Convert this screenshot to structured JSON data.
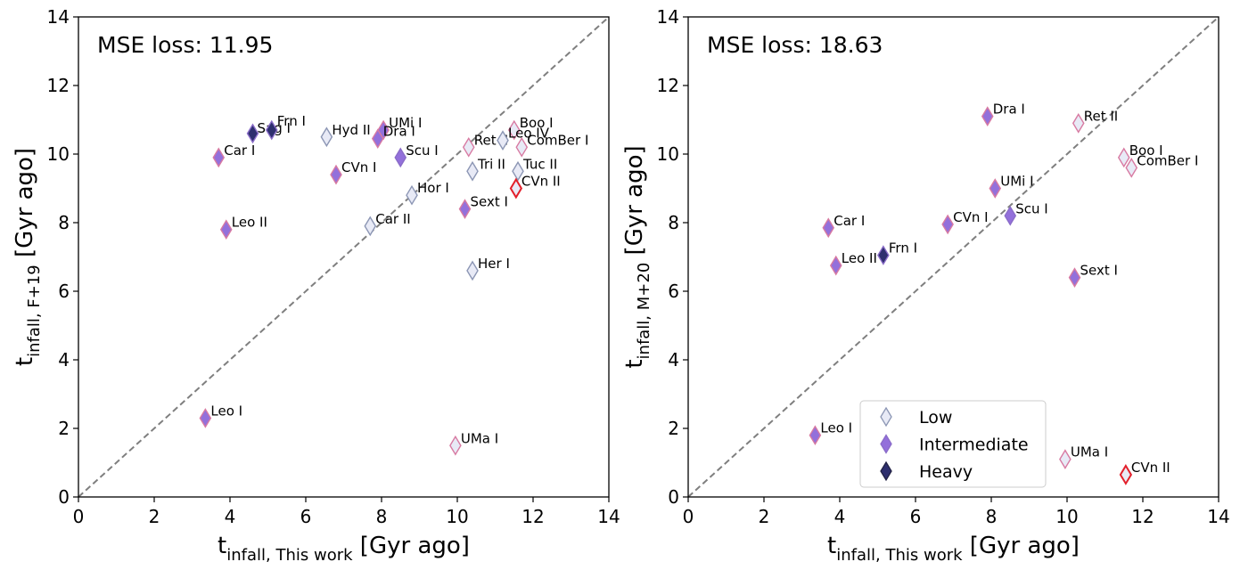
{
  "colors": {
    "low_fill": "#e8eaf6",
    "low_edge": "#8c96b4",
    "intermediate_fill": "#9370db",
    "heavy_fill": "#2e2f6e",
    "edge_pink": "#d87aa2",
    "edge_purple": "#8a6cc8",
    "edge_red": "#e3202b",
    "diagonal": "#7f7f7f"
  },
  "chart_data": [
    {
      "type": "scatter",
      "panel": "left",
      "mse_label": "MSE loss: 11.95",
      "xlabel": {
        "base": "t",
        "sub": "infall, This work",
        "unit": "[Gyr ago]"
      },
      "ylabel": {
        "base": "t",
        "sub": "infall, F+19",
        "unit": "[Gyr ago]"
      },
      "xlim": [
        0,
        14
      ],
      "ylim": [
        0,
        14
      ],
      "xticks": [
        "0",
        "2",
        "4",
        "6",
        "8",
        "10",
        "12",
        "14"
      ],
      "yticks": [
        "0",
        "2",
        "4",
        "6",
        "8",
        "10",
        "12",
        "14"
      ],
      "diagonal": true,
      "points": [
        {
          "name": "Sag I",
          "x": 4.6,
          "y": 10.6,
          "cls": "heavy",
          "edge": "purple",
          "dx": 5,
          "dy": -1
        },
        {
          "name": "Frn I",
          "x": 5.1,
          "y": 10.7,
          "cls": "heavy",
          "edge": "purple",
          "dx": 6,
          "dy": -5
        },
        {
          "name": "Car I",
          "x": 3.7,
          "y": 9.9,
          "cls": "intermediate",
          "edge": "pink",
          "dx": 6,
          "dy": -3
        },
        {
          "name": "Leo II",
          "x": 3.9,
          "y": 7.8,
          "cls": "intermediate",
          "edge": "pink",
          "dx": 6,
          "dy": -3
        },
        {
          "name": "Leo I",
          "x": 3.35,
          "y": 2.3,
          "cls": "intermediate",
          "edge": "pink",
          "dx": 6,
          "dy": -3
        },
        {
          "name": "Hyd II",
          "x": 6.55,
          "y": 10.5,
          "cls": "low",
          "edge": "low",
          "dx": 6,
          "dy": -3
        },
        {
          "name": "CVn I",
          "x": 6.8,
          "y": 9.4,
          "cls": "intermediate",
          "edge": "pink",
          "dx": 6,
          "dy": -3
        },
        {
          "name": "UMi I",
          "x": 8.05,
          "y": 10.7,
          "cls": "intermediate",
          "edge": "pink",
          "dx": 6,
          "dy": -3
        },
        {
          "name": "Dra I",
          "x": 7.9,
          "y": 10.45,
          "cls": "intermediate",
          "edge": "pink",
          "dx": 6,
          "dy": -3
        },
        {
          "name": "Scu I",
          "x": 8.5,
          "y": 9.9,
          "cls": "intermediate",
          "edge": "purple",
          "dx": 6,
          "dy": -3
        },
        {
          "name": "Hor I",
          "x": 8.8,
          "y": 8.8,
          "cls": "low",
          "edge": "low",
          "dx": 6,
          "dy": -3
        },
        {
          "name": "Car II",
          "x": 7.7,
          "y": 7.9,
          "cls": "low",
          "edge": "low",
          "dx": 6,
          "dy": -3
        },
        {
          "name": "Ret II",
          "x": 10.3,
          "y": 10.2,
          "cls": "low",
          "edge": "pink",
          "dx": 6,
          "dy": -3
        },
        {
          "name": "Tri II",
          "x": 10.4,
          "y": 9.5,
          "cls": "low",
          "edge": "low",
          "dx": 6,
          "dy": -3
        },
        {
          "name": "Sext I",
          "x": 10.2,
          "y": 8.4,
          "cls": "intermediate",
          "edge": "pink",
          "dx": 6,
          "dy": -3
        },
        {
          "name": "Her I",
          "x": 10.4,
          "y": 6.6,
          "cls": "low",
          "edge": "low",
          "dx": 6,
          "dy": -3
        },
        {
          "name": "UMa I",
          "x": 9.95,
          "y": 1.5,
          "cls": "low",
          "edge": "pink",
          "dx": 6,
          "dy": -3
        },
        {
          "name": "Boo I",
          "x": 11.5,
          "y": 10.7,
          "cls": "low",
          "edge": "pink",
          "dx": 6,
          "dy": -3
        },
        {
          "name": "Leo IV",
          "x": 11.2,
          "y": 10.4,
          "cls": "low",
          "edge": "low",
          "dx": 6,
          "dy": -3
        },
        {
          "name": "ComBer I",
          "x": 11.7,
          "y": 10.2,
          "cls": "low",
          "edge": "pink",
          "dx": 6,
          "dy": -3
        },
        {
          "name": "Tuc II",
          "x": 11.6,
          "y": 9.5,
          "cls": "low",
          "edge": "low",
          "dx": 6,
          "dy": -3
        },
        {
          "name": "CVn II",
          "x": 11.55,
          "y": 9.0,
          "cls": "low",
          "edge": "red",
          "dx": 6,
          "dy": -3
        }
      ]
    },
    {
      "type": "scatter",
      "panel": "right",
      "mse_label": "MSE loss: 18.63",
      "xlabel": {
        "base": "t",
        "sub": "infall, This work",
        "unit": "[Gyr ago]"
      },
      "ylabel": {
        "base": "t",
        "sub": "infall, M+20",
        "unit": "[Gyr ago]"
      },
      "xlim": [
        0,
        14
      ],
      "ylim": [
        0,
        14
      ],
      "xticks": [
        "0",
        "2",
        "4",
        "6",
        "8",
        "10",
        "12",
        "14"
      ],
      "yticks": [
        "0",
        "2",
        "4",
        "6",
        "8",
        "10",
        "12",
        "14"
      ],
      "diagonal": true,
      "legend": {
        "position": "lower-center",
        "entries": [
          {
            "label": "Low",
            "cls": "low"
          },
          {
            "label": "Intermediate",
            "cls": "intermediate"
          },
          {
            "label": "Heavy",
            "cls": "heavy"
          }
        ]
      },
      "points": [
        {
          "name": "Dra I",
          "x": 7.9,
          "y": 11.1,
          "cls": "intermediate",
          "edge": "pink",
          "dx": 6,
          "dy": -3
        },
        {
          "name": "Ret II",
          "x": 10.3,
          "y": 10.9,
          "cls": "low",
          "edge": "pink",
          "dx": 6,
          "dy": -3
        },
        {
          "name": "Boo I",
          "x": 11.5,
          "y": 9.9,
          "cls": "low",
          "edge": "pink",
          "dx": 6,
          "dy": -3
        },
        {
          "name": "ComBer I",
          "x": 11.7,
          "y": 9.6,
          "cls": "low",
          "edge": "pink",
          "dx": 6,
          "dy": -3
        },
        {
          "name": "UMi I",
          "x": 8.1,
          "y": 9.0,
          "cls": "intermediate",
          "edge": "pink",
          "dx": 6,
          "dy": -3
        },
        {
          "name": "Car I",
          "x": 3.7,
          "y": 7.85,
          "cls": "intermediate",
          "edge": "pink",
          "dx": 6,
          "dy": -3
        },
        {
          "name": "CVn I",
          "x": 6.85,
          "y": 7.95,
          "cls": "intermediate",
          "edge": "pink",
          "dx": 6,
          "dy": -3
        },
        {
          "name": "Scu I",
          "x": 8.5,
          "y": 8.2,
          "cls": "intermediate",
          "edge": "purple",
          "dx": 6,
          "dy": -3
        },
        {
          "name": "Frn I",
          "x": 5.15,
          "y": 7.05,
          "cls": "heavy",
          "edge": "purple",
          "dx": 6,
          "dy": -3
        },
        {
          "name": "Leo II",
          "x": 3.9,
          "y": 6.75,
          "cls": "intermediate",
          "edge": "pink",
          "dx": 6,
          "dy": -3
        },
        {
          "name": "Sext I",
          "x": 10.2,
          "y": 6.4,
          "cls": "intermediate",
          "edge": "pink",
          "dx": 6,
          "dy": -3
        },
        {
          "name": "Leo I",
          "x": 3.35,
          "y": 1.8,
          "cls": "intermediate",
          "edge": "pink",
          "dx": 6,
          "dy": -3
        },
        {
          "name": "UMa I",
          "x": 9.95,
          "y": 1.1,
          "cls": "low",
          "edge": "pink",
          "dx": 6,
          "dy": -3
        },
        {
          "name": "CVn II",
          "x": 11.55,
          "y": 0.65,
          "cls": "low",
          "edge": "red",
          "dx": 6,
          "dy": -3
        }
      ]
    }
  ]
}
